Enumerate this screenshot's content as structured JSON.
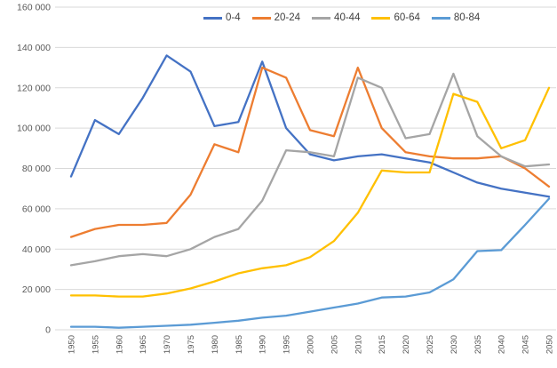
{
  "chart_data": {
    "type": "line",
    "title": "",
    "xlabel": "",
    "ylabel": "",
    "legend_position": "top",
    "grid": true,
    "grid_color": "#d9d9d9",
    "axis_label_color": "#595959",
    "legend_text_color": "#404040",
    "background_color": "#ffffff",
    "x_labels": [
      "1950",
      "1955",
      "1960",
      "1965",
      "1970",
      "1975",
      "1980",
      "1985",
      "1990",
      "1995",
      "2000",
      "2005",
      "2010",
      "2015",
      "2020",
      "2025",
      "2030",
      "2035",
      "2040",
      "2045",
      "2050"
    ],
    "y_axis": {
      "min": 0,
      "max": 160000,
      "step": 20000,
      "tick_labels": [
        "0",
        "20 000",
        "40 000",
        "60 000",
        "80 000",
        "100 000",
        "120 000",
        "140 000",
        "160 000"
      ]
    },
    "series": [
      {
        "name": "0-4",
        "color": "#4472C4",
        "values": [
          76000,
          104000,
          97000,
          115000,
          136000,
          128000,
          101000,
          103000,
          133000,
          100000,
          87000,
          84000,
          86000,
          87000,
          85000,
          83000,
          78000,
          73000,
          70000,
          68000,
          66000
        ]
      },
      {
        "name": "20-24",
        "color": "#ED7D31",
        "values": [
          46000,
          50000,
          52000,
          52000,
          53000,
          67000,
          92000,
          88000,
          130000,
          125000,
          99000,
          96000,
          130000,
          100000,
          88000,
          86000,
          85000,
          85000,
          86000,
          80000,
          71000
        ]
      },
      {
        "name": "40-44",
        "color": "#A5A5A5",
        "values": [
          32000,
          34000,
          36500,
          37500,
          36500,
          40000,
          46000,
          50000,
          64000,
          89000,
          88000,
          86000,
          125000,
          120000,
          95000,
          97000,
          127000,
          96000,
          86000,
          81000,
          82000
        ]
      },
      {
        "name": "60-64",
        "color": "#FFC000",
        "values": [
          17000,
          17000,
          16500,
          16500,
          18000,
          20500,
          24000,
          28000,
          30500,
          32000,
          36000,
          44000,
          58000,
          79000,
          78000,
          78000,
          117000,
          113000,
          90000,
          94000,
          120000
        ]
      },
      {
        "name": "80-84",
        "color": "#5B9BD5",
        "values": [
          1500,
          1500,
          1000,
          1500,
          2000,
          2500,
          3500,
          4500,
          6000,
          7000,
          9000,
          11000,
          13000,
          16000,
          16500,
          18500,
          25000,
          39000,
          39500,
          52000,
          65000
        ]
      }
    ]
  }
}
